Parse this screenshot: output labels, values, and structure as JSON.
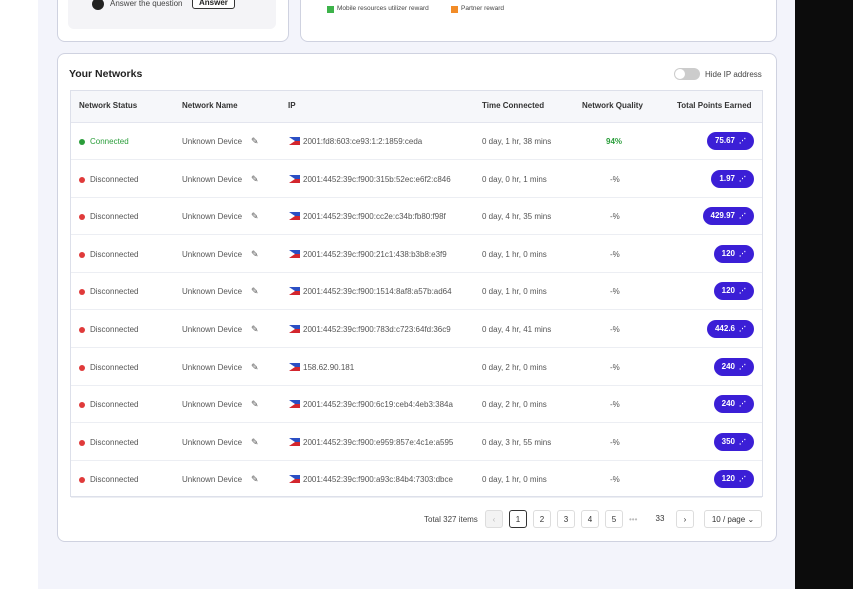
{
  "top_left": {
    "question": "Answer the question",
    "button": "Answer"
  },
  "legend": [
    {
      "label": "Mobile resources utilizer reward",
      "color": "#3db34a"
    },
    {
      "label": "Partner reward",
      "color": "#f28c28"
    }
  ],
  "header": {
    "title": "Your Networks",
    "toggle_label": "Hide IP address"
  },
  "table": {
    "columns": [
      "Network Status",
      "Network Name",
      "IP",
      "Time Connected",
      "Network Quality",
      "Total Points Earned"
    ],
    "rows": [
      {
        "status": "Connected",
        "status_color": "#2a9d3a",
        "name": "Unknown Device",
        "ip": "2001:fd8:603:ce93:1:2:1859:ceda",
        "time": "0 day, 1 hr, 38 mins",
        "quality": "94%",
        "quality_color": "#2a9d3a",
        "points": "75.67"
      },
      {
        "status": "Disconnected",
        "status_color": "#e03a3a",
        "name": "Unknown Device",
        "ip": "2001:4452:39c:f900:315b:52ec:e6f2:c846",
        "time": "0 day, 0 hr, 1 mins",
        "quality": "-%",
        "quality_color": "#555",
        "points": "1.97"
      },
      {
        "status": "Disconnected",
        "status_color": "#e03a3a",
        "name": "Unknown Device",
        "ip": "2001:4452:39c:f900:cc2e:c34b:fb80:f98f",
        "time": "0 day, 4 hr, 35 mins",
        "quality": "-%",
        "quality_color": "#555",
        "points": "429.97"
      },
      {
        "status": "Disconnected",
        "status_color": "#e03a3a",
        "name": "Unknown Device",
        "ip": "2001:4452:39c:f900:21c1:438:b3b8:e3f9",
        "time": "0 day, 1 hr, 0 mins",
        "quality": "-%",
        "quality_color": "#555",
        "points": "120"
      },
      {
        "status": "Disconnected",
        "status_color": "#e03a3a",
        "name": "Unknown Device",
        "ip": "2001:4452:39c:f900:1514:8af8:a57b:ad64",
        "time": "0 day, 1 hr, 0 mins",
        "quality": "-%",
        "quality_color": "#555",
        "points": "120"
      },
      {
        "status": "Disconnected",
        "status_color": "#e03a3a",
        "name": "Unknown Device",
        "ip": "2001:4452:39c:f900:783d:c723:64fd:36c9",
        "time": "0 day, 4 hr, 41 mins",
        "quality": "-%",
        "quality_color": "#555",
        "points": "442.6"
      },
      {
        "status": "Disconnected",
        "status_color": "#e03a3a",
        "name": "Unknown Device",
        "ip": "158.62.90.181",
        "time": "0 day, 2 hr, 0 mins",
        "quality": "-%",
        "quality_color": "#555",
        "points": "240"
      },
      {
        "status": "Disconnected",
        "status_color": "#e03a3a",
        "name": "Unknown Device",
        "ip": "2001:4452:39c:f900:6c19:ceb4:4eb3:384a",
        "time": "0 day, 2 hr, 0 mins",
        "quality": "-%",
        "quality_color": "#555",
        "points": "240"
      },
      {
        "status": "Disconnected",
        "status_color": "#e03a3a",
        "name": "Unknown Device",
        "ip": "2001:4452:39c:f900:e959:857e:4c1e:a595",
        "time": "0 day, 3 hr, 55 mins",
        "quality": "-%",
        "quality_color": "#555",
        "points": "350"
      },
      {
        "status": "Disconnected",
        "status_color": "#e03a3a",
        "name": "Unknown Device",
        "ip": "2001:4452:39c:f900:a93c:84b4:7303:dbce",
        "time": "0 day, 1 hr, 0 mins",
        "quality": "-%",
        "quality_color": "#555",
        "points": "120"
      }
    ]
  },
  "pagination": {
    "total": "Total 327 items",
    "pages": [
      "1",
      "2",
      "3",
      "4",
      "5"
    ],
    "ellipsis": "•••",
    "last": "33",
    "page_size": "10 / page"
  }
}
